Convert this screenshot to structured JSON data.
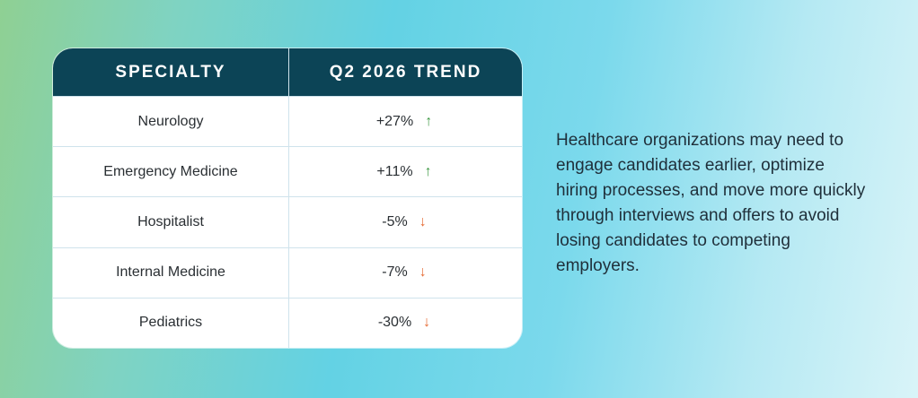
{
  "chart_data": {
    "type": "table",
    "columns": [
      "SPECIALTY",
      "Q2 2026 TREND"
    ],
    "rows": [
      {
        "specialty": "Neurology",
        "trend": "+27%",
        "value": 27,
        "direction": "up"
      },
      {
        "specialty": "Emergency Medicine",
        "trend": "+11%",
        "value": 11,
        "direction": "up"
      },
      {
        "specialty": "Hospitalist",
        "trend": "-5%",
        "value": -5,
        "direction": "down"
      },
      {
        "specialty": "Internal Medicine",
        "trend": "-7%",
        "value": -7,
        "direction": "down"
      },
      {
        "specialty": "Pediatrics",
        "trend": "-30%",
        "value": -30,
        "direction": "down"
      }
    ]
  },
  "blurb": "Healthcare organizations may need to engage candidates earlier, optimize hiring processes, and move more quickly through interviews and offers to avoid losing candidates to competing employers.",
  "colors": {
    "header_bg": "#0c4456",
    "up": "#3f9a45",
    "down": "#e56a33"
  },
  "icons": {
    "up": "arrow-up-icon",
    "down": "arrow-down-icon"
  }
}
